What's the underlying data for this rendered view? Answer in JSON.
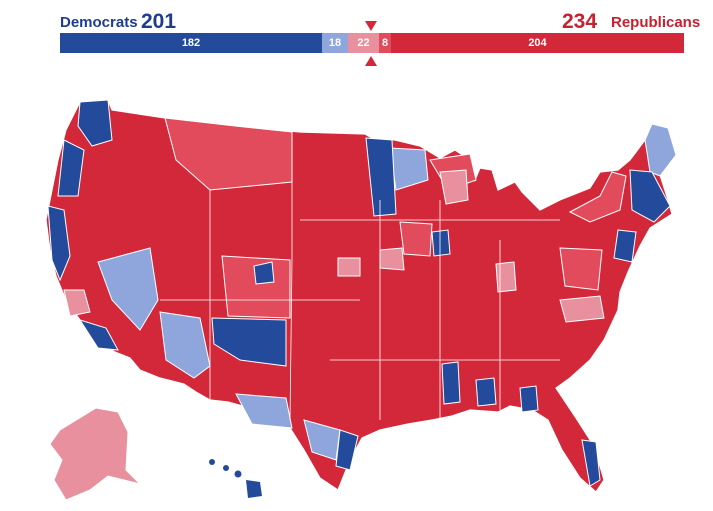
{
  "header": {
    "democrats": {
      "label": "Democrats",
      "total": "201"
    },
    "republicans": {
      "label": "Republicans",
      "total": "234"
    },
    "bar": {
      "dem_safe": "182",
      "dem_lean": "18",
      "tossup": "22",
      "rep_lean": "8",
      "rep_safe": "204"
    }
  },
  "colors": {
    "safe_dem": "#244a9b",
    "lean_dem": "#8fa6dd",
    "tossup": "#e8909d",
    "lean_rep": "#e14b5b",
    "safe_rep": "#d3273a"
  }
}
